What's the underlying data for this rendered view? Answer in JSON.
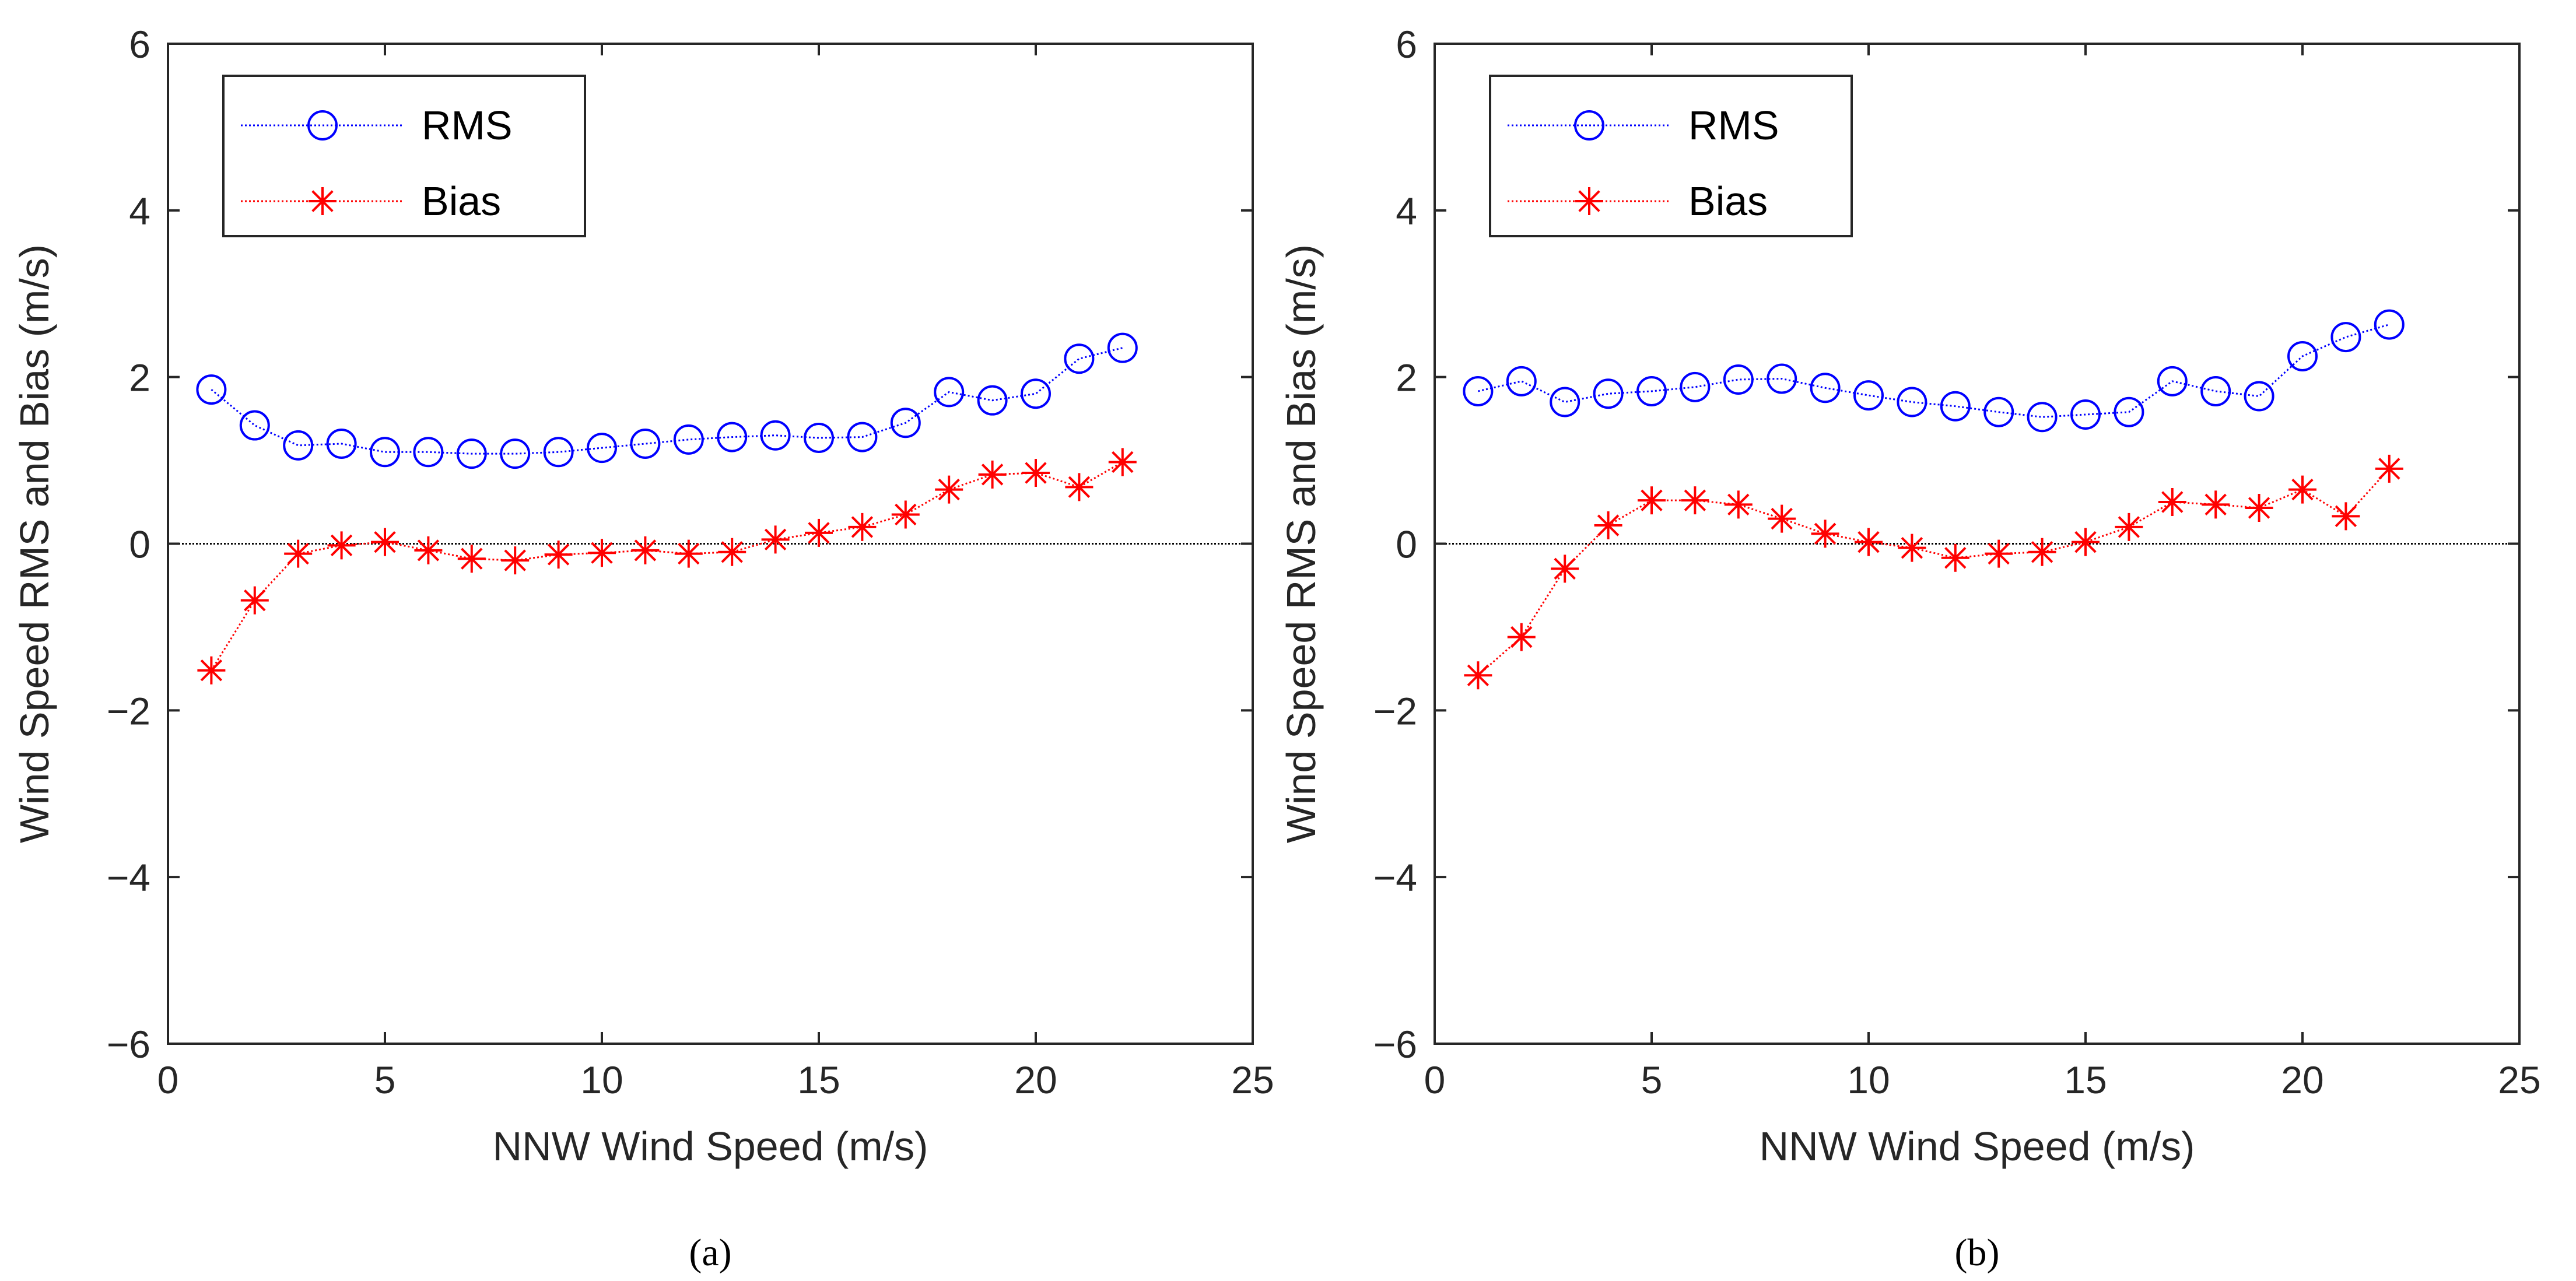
{
  "chart_data": [
    {
      "type": "line",
      "panel_label": "(a)",
      "xlabel": "NNW Wind Speed (m/s)",
      "ylabel": "Wind Speed RMS and Bias (m/s)",
      "xlim": [
        0,
        25
      ],
      "ylim": [
        -6,
        6
      ],
      "xticks": [
        0,
        5,
        10,
        15,
        20,
        25
      ],
      "yticks": [
        -6,
        -4,
        -2,
        0,
        2,
        4,
        6
      ],
      "ytick_labels": [
        "−6",
        "−4",
        "−2",
        "0",
        "2",
        "4",
        "6"
      ],
      "zero_line": true,
      "legend_position": "top-left",
      "x": [
        1,
        2,
        3,
        4,
        5,
        6,
        7,
        8,
        9,
        10,
        11,
        12,
        13,
        14,
        15,
        16,
        17,
        18,
        19,
        20,
        21,
        22
      ],
      "series": [
        {
          "name": "RMS",
          "marker": "circle",
          "color": "#0000ff",
          "values": [
            1.85,
            1.42,
            1.18,
            1.2,
            1.1,
            1.1,
            1.08,
            1.08,
            1.1,
            1.15,
            1.2,
            1.25,
            1.28,
            1.3,
            1.27,
            1.28,
            1.45,
            1.82,
            1.72,
            1.8,
            2.22,
            2.35
          ]
        },
        {
          "name": "Bias",
          "marker": "asterisk",
          "color": "#ff0000",
          "values": [
            -1.52,
            -0.68,
            -0.12,
            -0.02,
            0.02,
            -0.08,
            -0.18,
            -0.2,
            -0.13,
            -0.11,
            -0.08,
            -0.12,
            -0.1,
            0.05,
            0.13,
            0.2,
            0.35,
            0.65,
            0.83,
            0.85,
            0.68,
            0.98
          ]
        }
      ]
    },
    {
      "type": "line",
      "panel_label": "(b)",
      "xlabel": "NNW Wind Speed (m/s)",
      "ylabel": "Wind Speed RMS and Bias (m/s)",
      "xlim": [
        0,
        25
      ],
      "ylim": [
        -6,
        6
      ],
      "xticks": [
        0,
        5,
        10,
        15,
        20,
        25
      ],
      "yticks": [
        -6,
        -4,
        -2,
        0,
        2,
        4,
        6
      ],
      "ytick_labels": [
        "−6",
        "−4",
        "−2",
        "0",
        "2",
        "4",
        "6"
      ],
      "zero_line": true,
      "legend_position": "top-left",
      "x": [
        1,
        2,
        3,
        4,
        5,
        6,
        7,
        8,
        9,
        10,
        11,
        12,
        13,
        14,
        15,
        16,
        17,
        18,
        19,
        20,
        21,
        22
      ],
      "series": [
        {
          "name": "RMS",
          "marker": "circle",
          "color": "#0000ff",
          "values": [
            1.83,
            1.95,
            1.7,
            1.8,
            1.83,
            1.88,
            1.97,
            1.98,
            1.87,
            1.78,
            1.7,
            1.65,
            1.58,
            1.52,
            1.55,
            1.58,
            1.95,
            1.83,
            1.77,
            2.25,
            2.48,
            2.63
          ]
        },
        {
          "name": "Bias",
          "marker": "asterisk",
          "color": "#ff0000",
          "values": [
            -1.58,
            -1.12,
            -0.3,
            0.22,
            0.52,
            0.52,
            0.47,
            0.3,
            0.12,
            0.02,
            -0.05,
            -0.17,
            -0.12,
            -0.1,
            0.02,
            0.2,
            0.5,
            0.47,
            0.43,
            0.65,
            0.33,
            0.9
          ]
        }
      ]
    }
  ]
}
